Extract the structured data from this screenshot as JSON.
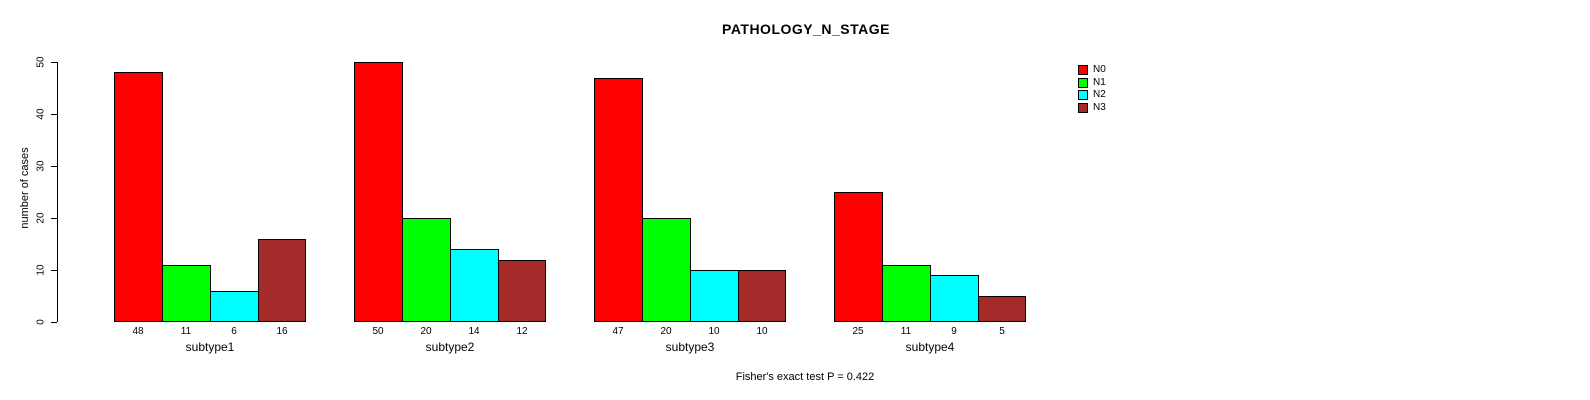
{
  "chart_data": {
    "type": "bar",
    "title": "PATHOLOGY_N_STAGE",
    "ylabel": "number of cases",
    "xlabel": "",
    "ylim": [
      0,
      50
    ],
    "yticks": [
      0,
      10,
      20,
      30,
      40,
      50
    ],
    "grid": false,
    "legend_position": "top-right",
    "bar_value_labels_shown": true,
    "categories": [
      "subtype1",
      "subtype2",
      "subtype3",
      "subtype4"
    ],
    "series": [
      {
        "name": "N0",
        "color": "#FF0000",
        "values": [
          48,
          50,
          47,
          25
        ]
      },
      {
        "name": "N1",
        "color": "#00FF00",
        "values": [
          11,
          20,
          20,
          11
        ]
      },
      {
        "name": "N2",
        "color": "#00FFFF",
        "values": [
          6,
          14,
          10,
          9
        ]
      },
      {
        "name": "N3",
        "color": "#A52A2A",
        "values": [
          16,
          12,
          10,
          5
        ]
      }
    ],
    "footer": "Fisher's exact test P = 0.422"
  }
}
